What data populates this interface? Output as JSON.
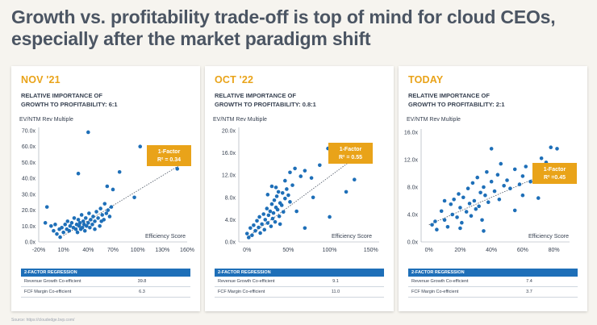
{
  "title": "Growth vs. profitability trade-off is top of mind for cloud CEOs, especially after the market paradigm shift",
  "source": "Source: https://cloudedge.bvp.com/",
  "colors": {
    "accent": "#e9a319",
    "point": "#1e6fb8",
    "header": "#1e6fb8"
  },
  "panels": [
    {
      "header": "NOV '21",
      "subtitle_line1": "RELATIVE IMPORTANCE OF",
      "subtitle_line2": "GROWTH TO PROFITABILITY: 6:1",
      "ylabel": "EV/NTM Rev Multiple",
      "efficiency_label": "Efficiency Score",
      "factor_label": "1-Factor",
      "factor_r2": "R² = 0.34",
      "table_header": "2-FACTOR REGRESSION",
      "table_rows": [
        {
          "label": "Revenue Growth Co-efficient",
          "value": "39.8"
        },
        {
          "label": "FCF Margin Co-efficient",
          "value": "6.3"
        }
      ],
      "chart_data": {
        "type": "scatter",
        "xlim": [
          -20,
          160
        ],
        "ylim": [
          0,
          70
        ],
        "xticks": [
          -20,
          10,
          40,
          70,
          100,
          130,
          160
        ],
        "xtick_labels": [
          "-20%",
          "10%",
          "40%",
          "70%",
          "100%",
          "130%",
          "160%"
        ],
        "yticks": [
          0,
          10,
          20,
          30,
          40,
          50,
          60,
          70
        ],
        "ytick_labels": [
          "0.0x",
          "10.0x",
          "20.0x",
          "30.0x",
          "40.0x",
          "50.0x",
          "60.0x",
          "70.0x"
        ],
        "trendline": [
          [
            10,
            4
          ],
          [
            150,
            48
          ]
        ],
        "points": [
          [
            -12,
            12
          ],
          [
            -5,
            10
          ],
          [
            -2,
            7
          ],
          [
            0,
            11
          ],
          [
            2,
            5
          ],
          [
            5,
            8
          ],
          [
            6,
            3
          ],
          [
            8,
            9
          ],
          [
            10,
            6
          ],
          [
            12,
            11
          ],
          [
            14,
            8
          ],
          [
            15,
            13
          ],
          [
            17,
            7
          ],
          [
            18,
            10
          ],
          [
            20,
            12
          ],
          [
            22,
            9
          ],
          [
            23,
            15
          ],
          [
            25,
            8
          ],
          [
            26,
            11
          ],
          [
            27,
            6
          ],
          [
            28,
            14
          ],
          [
            29,
            10
          ],
          [
            30,
            12
          ],
          [
            31,
            8
          ],
          [
            32,
            17
          ],
          [
            33,
            9
          ],
          [
            34,
            13
          ],
          [
            35,
            11
          ],
          [
            36,
            7
          ],
          [
            37,
            15
          ],
          [
            38,
            10
          ],
          [
            40,
            12
          ],
          [
            41,
            18
          ],
          [
            42,
            9
          ],
          [
            43,
            14
          ],
          [
            45,
            11
          ],
          [
            46,
            16
          ],
          [
            48,
            13
          ],
          [
            50,
            19
          ],
          [
            52,
            15
          ],
          [
            54,
            10
          ],
          [
            55,
            21
          ],
          [
            57,
            17
          ],
          [
            59,
            14
          ],
          [
            60,
            24
          ],
          [
            62,
            18
          ],
          [
            64,
            20
          ],
          [
            66,
            16
          ],
          [
            68,
            22
          ],
          [
            56,
            13
          ],
          [
            63,
            35
          ],
          [
            70,
            33
          ],
          [
            78,
            44
          ],
          [
            96,
            28
          ],
          [
            148,
            46
          ],
          [
            103,
            60
          ],
          [
            40,
            69
          ],
          [
            28,
            43
          ],
          [
            -10,
            22
          ],
          [
            48,
            8
          ]
        ]
      }
    },
    {
      "header": "OCT '22",
      "subtitle_line1": "RELATIVE IMPORTANCE OF",
      "subtitle_line2": "GROWTH TO PROFITABILITY: 0.8:1",
      "ylabel": "EV/NTM Rev Multiple",
      "efficiency_label": "Efficiency Score",
      "factor_label": "1-Factor",
      "factor_r2": "R² = 0.55",
      "table_header": "2-FACTOR REGRESSION",
      "table_rows": [
        {
          "label": "Revenue Growth Co-efficient",
          "value": "9.1"
        },
        {
          "label": "FCF Margin Co-efficient",
          "value": "11.0"
        }
      ],
      "chart_data": {
        "type": "scatter",
        "xlim": [
          -10,
          160
        ],
        "ylim": [
          0,
          20
        ],
        "xticks": [
          0,
          50,
          100,
          150
        ],
        "xtick_labels": [
          "0%",
          "50%",
          "100%",
          "150%"
        ],
        "yticks": [
          0,
          4,
          8,
          12,
          16,
          20
        ],
        "ytick_labels": [
          "0.0x",
          "4.0x",
          "8.0x",
          "12.0x",
          "16.0x",
          "20.0x"
        ],
        "trendline": [
          [
            0,
            0.8
          ],
          [
            125,
            14.5
          ]
        ],
        "points": [
          [
            0,
            1.5
          ],
          [
            2,
            0.8
          ],
          [
            4,
            2.5
          ],
          [
            6,
            1.2
          ],
          [
            8,
            3.0
          ],
          [
            10,
            2.0
          ],
          [
            12,
            3.8
          ],
          [
            14,
            2.6
          ],
          [
            15,
            4.5
          ],
          [
            16,
            1.6
          ],
          [
            18,
            3.2
          ],
          [
            20,
            5.0
          ],
          [
            21,
            2.2
          ],
          [
            22,
            4.0
          ],
          [
            24,
            6.0
          ],
          [
            25,
            3.4
          ],
          [
            26,
            4.8
          ],
          [
            28,
            5.5
          ],
          [
            29,
            2.8
          ],
          [
            30,
            6.8
          ],
          [
            31,
            4.2
          ],
          [
            32,
            5.2
          ],
          [
            33,
            7.5
          ],
          [
            34,
            3.6
          ],
          [
            35,
            6.2
          ],
          [
            36,
            8.2
          ],
          [
            37,
            5.8
          ],
          [
            38,
            9.0
          ],
          [
            39,
            4.6
          ],
          [
            40,
            7.0
          ],
          [
            42,
            6.6
          ],
          [
            43,
            8.8
          ],
          [
            44,
            5.4
          ],
          [
            46,
            7.8
          ],
          [
            48,
            9.5
          ],
          [
            50,
            8.4
          ],
          [
            52,
            7.2
          ],
          [
            25,
            8.5
          ],
          [
            30,
            10.0
          ],
          [
            46,
            11.0
          ],
          [
            52,
            12.5
          ],
          [
            58,
            13.2
          ],
          [
            65,
            11.8
          ],
          [
            70,
            12.8
          ],
          [
            78,
            11.5
          ],
          [
            88,
            13.8
          ],
          [
            60,
            5.5
          ],
          [
            80,
            8.0
          ],
          [
            70,
            2.5
          ],
          [
            40,
            3.2
          ],
          [
            100,
            4.5
          ],
          [
            130,
            11.2
          ],
          [
            120,
            9.0
          ],
          [
            98,
            16.8
          ],
          [
            35,
            9.8
          ],
          [
            55,
            10.2
          ]
        ]
      }
    },
    {
      "header": "TODAY",
      "subtitle_line1": "RELATIVE IMPORTANCE OF",
      "subtitle_line2": "GROWTH TO PROFITABILITY: 2:1",
      "ylabel": "EV/NTM Rev Multiple",
      "efficiency_label": "Efficiency Score",
      "factor_label": "1-Factor",
      "factor_r2": "R² =0.45",
      "table_header": "2-FACTOR REGRESSION",
      "table_rows": [
        {
          "label": "Revenue Growth Co-efficient",
          "value": "7.4"
        },
        {
          "label": "FCF Margin Co-efficient",
          "value": "3.7"
        }
      ],
      "chart_data": {
        "type": "scatter",
        "xlim": [
          -5,
          90
        ],
        "ylim": [
          0,
          16
        ],
        "xticks": [
          0,
          20,
          40,
          60,
          80
        ],
        "xtick_labels": [
          "0%",
          "20%",
          "40%",
          "60%",
          "80%"
        ],
        "yticks": [
          0,
          4,
          8,
          12,
          16
        ],
        "ytick_labels": [
          "0.0x",
          "4.0x",
          "8.0x",
          "12.0x",
          "16.0x"
        ],
        "trendline": [
          [
            0,
            2.5
          ],
          [
            85,
            11.0
          ]
        ],
        "points": [
          [
            2,
            2.5
          ],
          [
            4,
            3.0
          ],
          [
            5,
            1.8
          ],
          [
            8,
            4.5
          ],
          [
            10,
            3.2
          ],
          [
            12,
            2.2
          ],
          [
            14,
            5.5
          ],
          [
            15,
            4.0
          ],
          [
            16,
            6.2
          ],
          [
            18,
            3.6
          ],
          [
            19,
            7.0
          ],
          [
            20,
            5.0
          ],
          [
            21,
            2.8
          ],
          [
            22,
            6.5
          ],
          [
            24,
            4.4
          ],
          [
            25,
            7.8
          ],
          [
            26,
            5.6
          ],
          [
            27,
            3.8
          ],
          [
            28,
            8.6
          ],
          [
            29,
            6.0
          ],
          [
            30,
            4.8
          ],
          [
            31,
            9.4
          ],
          [
            32,
            5.2
          ],
          [
            33,
            7.2
          ],
          [
            34,
            3.2
          ],
          [
            35,
            8.0
          ],
          [
            36,
            6.8
          ],
          [
            37,
            10.2
          ],
          [
            38,
            5.8
          ],
          [
            40,
            8.8
          ],
          [
            42,
            7.4
          ],
          [
            44,
            9.8
          ],
          [
            45,
            6.2
          ],
          [
            46,
            11.4
          ],
          [
            48,
            8.2
          ],
          [
            50,
            9.0
          ],
          [
            52,
            7.8
          ],
          [
            55,
            10.6
          ],
          [
            58,
            8.4
          ],
          [
            60,
            9.6
          ],
          [
            62,
            11.0
          ],
          [
            65,
            8.8
          ],
          [
            68,
            10.4
          ],
          [
            72,
            12.2
          ],
          [
            75,
            11.6
          ],
          [
            78,
            13.8
          ],
          [
            82,
            13.6
          ],
          [
            80,
            9.8
          ],
          [
            70,
            6.4
          ],
          [
            40,
            13.6
          ],
          [
            20,
            2.0
          ],
          [
            35,
            1.6
          ],
          [
            10,
            6.0
          ],
          [
            55,
            4.6
          ],
          [
            60,
            6.8
          ]
        ]
      }
    }
  ]
}
